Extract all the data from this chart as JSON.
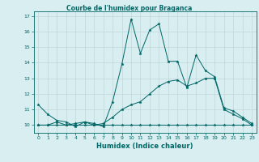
{
  "title": "Courbe de l'humidex pour Braganca",
  "xlabel": "Humidex (Indice chaleur)",
  "background_color": "#d8eef0",
  "grid_color": "#c0d8da",
  "line_color": "#006666",
  "xlim": [
    -0.5,
    23.5
  ],
  "ylim": [
    9.5,
    17.3
  ],
  "yticks": [
    10,
    11,
    12,
    13,
    14,
    15,
    16,
    17
  ],
  "xticks": [
    0,
    1,
    2,
    3,
    4,
    5,
    6,
    7,
    8,
    9,
    10,
    11,
    12,
    13,
    14,
    15,
    16,
    17,
    18,
    19,
    20,
    21,
    22,
    23
  ],
  "series": [
    {
      "x": [
        0,
        1,
        2,
        3,
        4,
        5,
        6,
        7,
        8,
        9,
        10,
        11,
        12,
        13,
        14,
        15,
        16,
        17,
        18,
        19,
        20,
        21,
        22,
        23
      ],
      "y": [
        11.3,
        10.7,
        10.3,
        10.2,
        9.9,
        10.2,
        10.1,
        9.9,
        11.5,
        13.9,
        16.8,
        14.6,
        16.1,
        16.5,
        14.1,
        14.1,
        12.4,
        14.5,
        13.5,
        13.1,
        11.1,
        10.9,
        10.5,
        10.1
      ]
    },
    {
      "x": [
        0,
        1,
        2,
        3,
        4,
        5,
        6,
        7,
        8,
        9,
        10,
        11,
        12,
        13,
        14,
        15,
        16,
        17,
        18,
        19,
        20,
        21,
        22,
        23
      ],
      "y": [
        10.0,
        10.0,
        10.2,
        10.0,
        10.1,
        10.2,
        10.0,
        10.1,
        10.5,
        11.0,
        11.3,
        11.5,
        12.0,
        12.5,
        12.8,
        12.9,
        12.5,
        12.7,
        13.0,
        13.0,
        11.0,
        10.7,
        10.4,
        10.0
      ]
    },
    {
      "x": [
        0,
        1,
        2,
        3,
        4,
        5,
        6,
        7,
        8,
        9,
        10,
        11,
        12,
        13,
        14,
        15,
        16,
        17,
        18,
        19,
        20,
        21,
        22,
        23
      ],
      "y": [
        10.0,
        10.0,
        10.0,
        10.0,
        10.0,
        10.0,
        10.0,
        10.0,
        10.0,
        10.0,
        10.0,
        10.0,
        10.0,
        10.0,
        10.0,
        10.0,
        10.0,
        10.0,
        10.0,
        10.0,
        10.0,
        10.0,
        10.0,
        10.0
      ]
    }
  ]
}
